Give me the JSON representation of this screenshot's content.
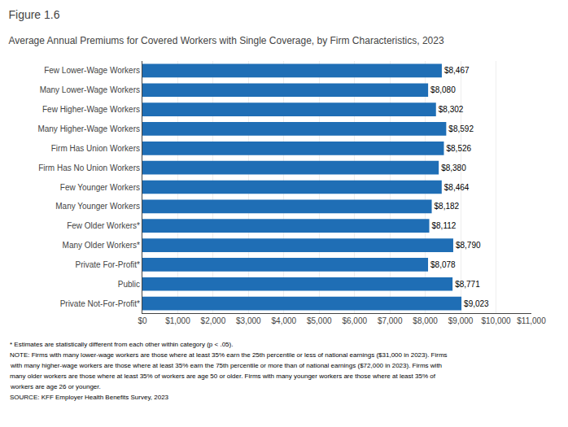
{
  "chart_data": {
    "type": "bar",
    "orientation": "horizontal",
    "title": "Figure 1.6",
    "subtitle": "Average Annual Premiums for Covered Workers with Single Coverage, by Firm Characteristics, 2023",
    "categories": [
      "Private Not-For-Profit*",
      "Public",
      "Private For-Profit*",
      "Many Older Workers*",
      "Few Older Workers*",
      "Many Younger Workers",
      "Few Younger Workers",
      "Firm Has No Union Workers",
      "Firm Has Union Workers",
      "Many Higher-Wage Workers",
      "Few Higher-Wage Workers",
      "Many Lower-Wage Workers",
      "Few Lower-Wage Workers"
    ],
    "values": [
      9023,
      8771,
      8078,
      8790,
      8112,
      8182,
      8464,
      8380,
      8526,
      8592,
      8302,
      8080,
      8467
    ],
    "value_labels": [
      "$9,023",
      "$8,771",
      "$8,078",
      "$8,790",
      "$8,112",
      "$8,182",
      "$8,464",
      "$8,380",
      "$8,526",
      "$8,592",
      "$8,302",
      "$8,080",
      "$8,467"
    ],
    "data_labels": true,
    "color": "#1F6EB5",
    "xlim": [
      0,
      11000
    ],
    "xticks": [
      {
        "value": 0,
        "label": "$0"
      },
      {
        "value": 1000,
        "label": "$1,000"
      },
      {
        "value": 2000,
        "label": "$2,000"
      },
      {
        "value": 3000,
        "label": "$3,000"
      },
      {
        "value": 4000,
        "label": "$4,000"
      },
      {
        "value": 5000,
        "label": "$5,000"
      },
      {
        "value": 6000,
        "label": "$6,000"
      },
      {
        "value": 7000,
        "label": "$7,000"
      },
      {
        "value": 8000,
        "label": "$8,000"
      },
      {
        "value": 9000,
        "label": "$9,000"
      },
      {
        "value": 10000,
        "label": "$10,000"
      },
      {
        "value": 11000,
        "label": "$11,000"
      }
    ],
    "grid": true,
    "annotations": [
      "* Estimates are statistically different from each other within category (p < .05).",
      "NOTE: Firms with many lower-wage workers are those where at least 35% earn the 25th percentile or less of national earnings ($31,000 in 2023). Firms",
      "with many higher-wage workers are those where at least 35% earn the 75th percentile or more than of national earnings ($72,000 in 2023). Firms with",
      "many older workers are those where at least 35% of workers are age 50 or older. Firms with many younger workers are those where at least 35% of",
      "workers are age 26 or younger.",
      "SOURCE: KFF Employer Health Benefits Survey, 2023"
    ]
  }
}
